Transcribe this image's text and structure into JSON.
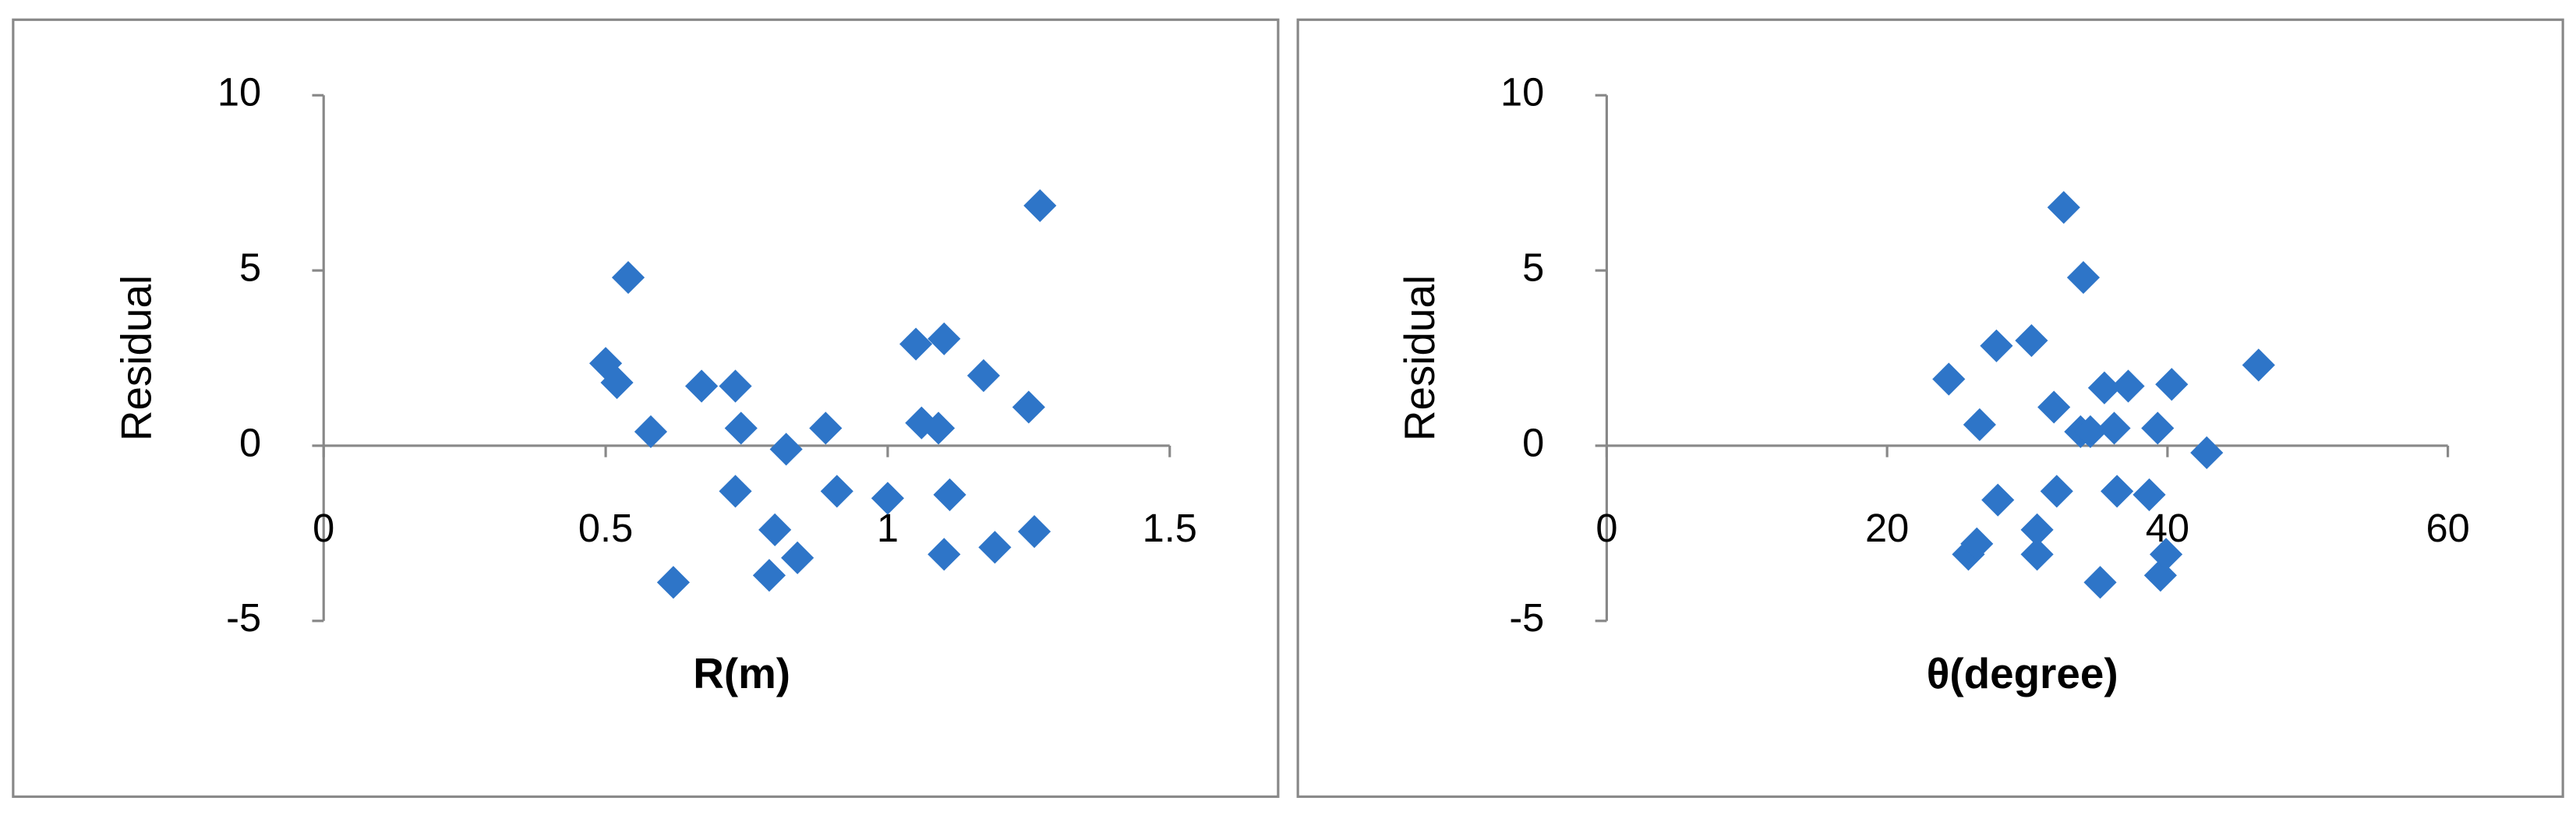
{
  "chart_data": [
    {
      "type": "scatter",
      "xlabel": "R(m)",
      "ylabel": "Residual",
      "color": "#2e75c8",
      "x": [
        0.5,
        0.52,
        0.54,
        0.58,
        0.62,
        0.67,
        0.73,
        0.74,
        0.73,
        0.79,
        0.8,
        0.84,
        0.82,
        0.89,
        0.91,
        1.0,
        1.05,
        1.1,
        1.06,
        1.09,
        1.11,
        1.1,
        1.17,
        1.19,
        1.25,
        1.26,
        1.27
      ],
      "values": [
        2.35,
        1.8,
        4.8,
        0.4,
        -3.9,
        1.7,
        1.7,
        0.5,
        -1.3,
        -3.7,
        -2.4,
        -3.2,
        -0.1,
        0.5,
        -1.3,
        -1.5,
        2.9,
        3.05,
        0.65,
        0.5,
        -1.4,
        -3.1,
        2.0,
        -2.9,
        1.1,
        -2.45,
        6.85
      ],
      "xlim": [
        0,
        1.5
      ],
      "ylim": [
        -5,
        10
      ],
      "xticks": [
        0,
        0.5,
        1,
        1.5
      ],
      "yticks": [
        -5,
        0,
        5,
        10
      ]
    },
    {
      "type": "scatter",
      "xlabel": "θ(degree)",
      "ylabel": "Residual",
      "color": "#2e75c8",
      "x": [
        24.4,
        26.6,
        25.8,
        26.4,
        27.8,
        27.9,
        30.3,
        30.7,
        30.7,
        31.9,
        32.1,
        32.6,
        33.8,
        34.0,
        34.5,
        35.2,
        35.5,
        36.2,
        36.4,
        37.2,
        38.7,
        39.3,
        39.5,
        39.9,
        40.3,
        42.8,
        46.5
      ],
      "values": [
        1.9,
        0.6,
        -3.1,
        -2.8,
        2.85,
        -1.55,
        3.0,
        -2.4,
        -3.1,
        1.1,
        -1.3,
        6.8,
        0.4,
        4.8,
        0.4,
        -3.9,
        1.65,
        0.5,
        -1.3,
        1.7,
        -1.4,
        0.5,
        -3.7,
        -3.1,
        1.75,
        -0.2,
        2.3
      ],
      "xlim": [
        0,
        60
      ],
      "ylim": [
        -5,
        10
      ],
      "xticks": [
        0,
        20,
        40,
        60
      ],
      "yticks": [
        -5,
        0,
        5,
        10
      ]
    }
  ]
}
